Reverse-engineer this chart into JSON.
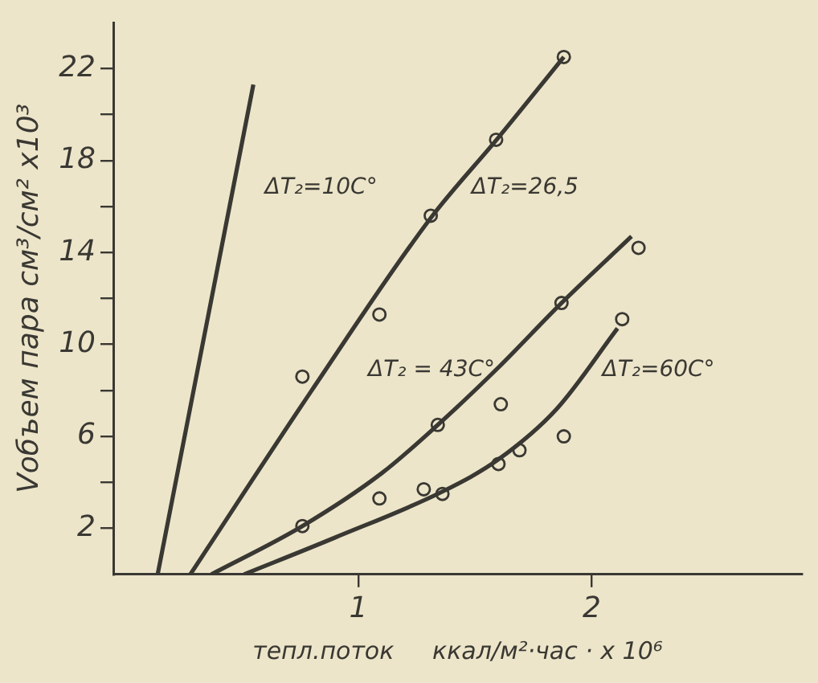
{
  "chart_data": {
    "type": "line",
    "xlabel": "тепл.поток     ккал/м²·час · x 10⁶",
    "ylabel": "Vобъем пара см³/см² x10³",
    "xlim": [
      -0.05,
      2.9
    ],
    "ylim": [
      0,
      24
    ],
    "xticks": [
      1,
      2
    ],
    "yticks": [
      2,
      {
        "value": 4,
        "label": null
      },
      6,
      {
        "value": 8,
        "label": null
      },
      10,
      {
        "value": 12,
        "label": null
      },
      14,
      {
        "value": 16,
        "label": null
      },
      18,
      {
        "value": 20,
        "label": null
      },
      22
    ],
    "series": [
      {
        "color": "#3a3833",
        "marker": "none",
        "x": [
          0.14,
          0.55
        ],
        "values": [
          0,
          21.3
        ]
      },
      {
        "color": "#3a3833",
        "marker": "none",
        "x": [
          0.28,
          0.8,
          1.31,
          1.6,
          1.88
        ],
        "values": [
          0,
          8,
          15.5,
          19,
          22.5
        ]
      },
      {
        "color": "#3a3833",
        "marker": "none",
        "x": [
          0.37,
          0.76,
          1.1,
          1.34,
          1.6,
          1.87,
          2.17
        ],
        "values": [
          0,
          2.1,
          4.4,
          6.5,
          9,
          11.8,
          14.7
        ]
      },
      {
        "color": "#3a3833",
        "marker": "none",
        "x": [
          0.51,
          0.9,
          1.36,
          1.6,
          1.85,
          2.11
        ],
        "values": [
          0,
          1.6,
          3.6,
          5,
          7.2,
          10.7
        ]
      },
      {
        "type": "scatter",
        "color": "#3a3833",
        "marker": "circle",
        "x": [
          0.76,
          1.09,
          1.31,
          1.59,
          1.88
        ],
        "values": [
          8.6,
          11.3,
          15.6,
          18.9,
          22.5
        ]
      },
      {
        "type": "scatter",
        "color": "#3a3833",
        "marker": "circle",
        "x": [
          0.76,
          1.09,
          1.34,
          1.61,
          1.87,
          2.2
        ],
        "values": [
          2.1,
          3.3,
          6.5,
          7.4,
          11.8,
          14.2
        ]
      },
      {
        "type": "scatter",
        "color": "#3a3833",
        "marker": "circle",
        "x": [
          1.28,
          1.36,
          1.6,
          1.69,
          1.88,
          2.13
        ],
        "values": [
          3.7,
          3.5,
          4.8,
          5.4,
          6.0,
          11.1
        ]
      }
    ],
    "annotations": [
      "ΔT₂=10C°",
      "ΔT₂=26,5",
      "ΔT₂ = 43C°",
      "ΔT₂=60C°"
    ]
  }
}
